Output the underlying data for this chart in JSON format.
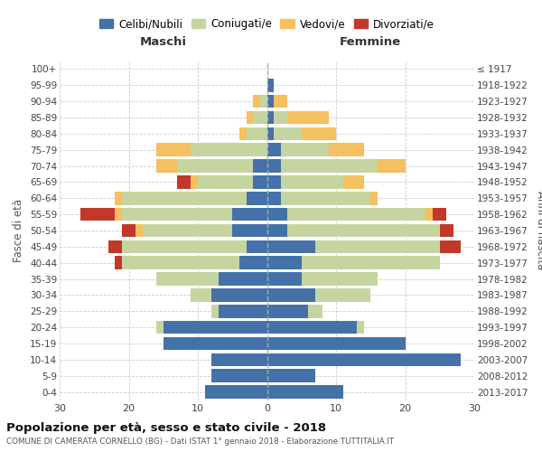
{
  "age_groups": [
    "0-4",
    "5-9",
    "10-14",
    "15-19",
    "20-24",
    "25-29",
    "30-34",
    "35-39",
    "40-44",
    "45-49",
    "50-54",
    "55-59",
    "60-64",
    "65-69",
    "70-74",
    "75-79",
    "80-84",
    "85-89",
    "90-94",
    "95-99",
    "100+"
  ],
  "birth_years": [
    "2013-2017",
    "2008-2012",
    "2003-2007",
    "1998-2002",
    "1993-1997",
    "1988-1992",
    "1983-1987",
    "1978-1982",
    "1973-1977",
    "1968-1972",
    "1963-1967",
    "1958-1962",
    "1953-1957",
    "1948-1952",
    "1943-1947",
    "1938-1942",
    "1933-1937",
    "1928-1932",
    "1923-1927",
    "1918-1922",
    "≤ 1917"
  ],
  "colors": {
    "celibi": "#4472a8",
    "coniugati": "#c5d5a0",
    "vedovi": "#f4c060",
    "divorziati": "#c0392b"
  },
  "male": {
    "celibi": [
      9,
      8,
      8,
      15,
      15,
      7,
      8,
      7,
      4,
      3,
      5,
      5,
      3,
      2,
      2,
      0,
      0,
      0,
      0,
      0,
      0
    ],
    "coniugati": [
      0,
      0,
      0,
      0,
      1,
      1,
      3,
      9,
      17,
      18,
      13,
      16,
      18,
      8,
      11,
      11,
      3,
      2,
      1,
      0,
      0
    ],
    "vedovi": [
      0,
      0,
      0,
      0,
      0,
      0,
      0,
      0,
      0,
      0,
      1,
      1,
      1,
      1,
      3,
      5,
      1,
      1,
      1,
      0,
      0
    ],
    "divorziati": [
      0,
      0,
      0,
      0,
      0,
      0,
      0,
      0,
      1,
      2,
      2,
      5,
      0,
      2,
      0,
      0,
      0,
      0,
      0,
      0,
      0
    ]
  },
  "female": {
    "celibi": [
      11,
      7,
      28,
      20,
      13,
      6,
      7,
      5,
      5,
      7,
      3,
      3,
      2,
      2,
      2,
      2,
      1,
      1,
      1,
      1,
      0
    ],
    "coniugati": [
      0,
      0,
      0,
      0,
      1,
      2,
      8,
      11,
      20,
      18,
      22,
      20,
      13,
      9,
      14,
      7,
      4,
      2,
      0,
      0,
      0
    ],
    "vedovi": [
      0,
      0,
      0,
      0,
      0,
      0,
      0,
      0,
      0,
      0,
      0,
      1,
      1,
      3,
      4,
      5,
      5,
      6,
      2,
      0,
      0
    ],
    "divorziati": [
      0,
      0,
      0,
      0,
      0,
      0,
      0,
      0,
      0,
      3,
      2,
      2,
      0,
      0,
      0,
      0,
      0,
      0,
      0,
      0,
      0
    ]
  },
  "xlim": 30,
  "title_main": "Popolazione per età, sesso e stato civile - 2018",
  "title_sub": "COMUNE DI CAMERATA CORNELLO (BG) - Dati ISTAT 1° gennaio 2018 - Elaborazione TUTTITALIA.IT",
  "ylabel_left": "Fasce di età",
  "ylabel_right": "Anni di nascita",
  "label_maschi": "Maschi",
  "label_femmine": "Femmine",
  "legend_labels": [
    "Celibi/Nubili",
    "Coniugati/e",
    "Vedovi/e",
    "Divorziati/e"
  ],
  "bg_color": "#ffffff",
  "bar_height": 0.82,
  "grid_color": "#cccccc"
}
